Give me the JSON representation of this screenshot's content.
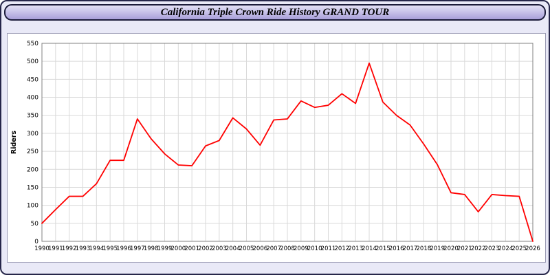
{
  "header": {
    "title": "California Triple Crown Ride History GRAND TOUR"
  },
  "chart_data": {
    "type": "line",
    "title": "California Triple Crown Ride History GRAND TOUR",
    "xlabel": "",
    "ylabel": "Riders",
    "ylim": [
      0,
      550
    ],
    "ytick_step": 50,
    "grid": true,
    "legend_position": "none",
    "x": [
      1990,
      1991,
      1992,
      1993,
      1994,
      1995,
      1996,
      1997,
      1998,
      1999,
      2000,
      2001,
      2002,
      2003,
      2004,
      2005,
      2006,
      2007,
      2008,
      2009,
      2010,
      2011,
      2012,
      2013,
      2014,
      2015,
      2016,
      2017,
      2018,
      2019,
      2020,
      2021,
      2022,
      2023,
      2024,
      2025,
      2026
    ],
    "series": [
      {
        "name": "Riders",
        "color": "#ff0000",
        "values": [
          50,
          88,
          125,
          125,
          160,
          225,
          225,
          340,
          285,
          243,
          212,
          210,
          265,
          280,
          343,
          312,
          267,
          337,
          340,
          390,
          372,
          378,
          410,
          383,
          495,
          387,
          350,
          323,
          270,
          213,
          135,
          130,
          82,
          130,
          127,
          125,
          0
        ]
      }
    ],
    "styles": {
      "grid_color": "#d9d9d9",
      "axis_box_color": "#808080",
      "tick_label_color": "#000000"
    }
  }
}
